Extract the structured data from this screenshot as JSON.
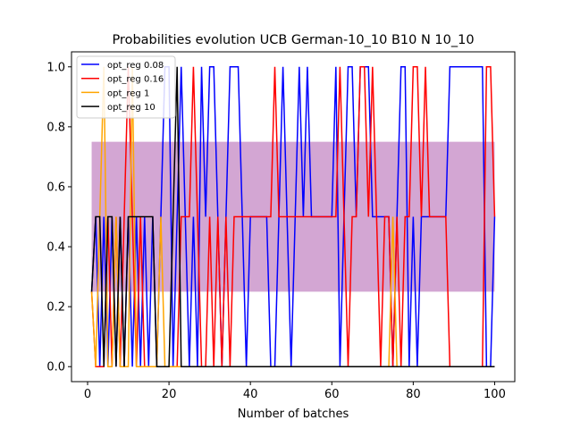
{
  "chart_data": {
    "type": "line",
    "title": "Probabilities evolution UCB German-10_10 B10 N 10_10",
    "xlabel": "Number of batches",
    "ylabel": "",
    "xlim": [
      -3.95,
      104.95
    ],
    "ylim": [
      -0.05,
      1.05
    ],
    "xticks": [
      0,
      20,
      40,
      60,
      80,
      100
    ],
    "yticks": [
      0.0,
      0.2,
      0.4,
      0.6,
      0.8,
      1.0
    ],
    "xtick_labels": [
      "0",
      "20",
      "40",
      "60",
      "80",
      "100"
    ],
    "ytick_labels": [
      "0.0",
      "0.2",
      "0.4",
      "0.6",
      "0.8",
      "1.0"
    ],
    "grid": false,
    "legend_position": "top-left",
    "band": {
      "x": [
        1,
        100
      ],
      "lower": 0.25,
      "upper": 0.75,
      "color": "#800080"
    },
    "series": [
      {
        "name": "opt_reg 0.08",
        "color": "#0000ff",
        "x": [
          1,
          2,
          3,
          4,
          5,
          6,
          7,
          8,
          9,
          10,
          11,
          12,
          13,
          14,
          15,
          16,
          17,
          18,
          19,
          20,
          21,
          22,
          23,
          24,
          25,
          26,
          27,
          28,
          29,
          30,
          31,
          32,
          33,
          34,
          35,
          36,
          37,
          38,
          39,
          40,
          41,
          42,
          43,
          44,
          45,
          46,
          47,
          48,
          49,
          50,
          51,
          52,
          53,
          54,
          55,
          56,
          57,
          58,
          59,
          60,
          61,
          62,
          63,
          64,
          65,
          66,
          67,
          68,
          69,
          70,
          71,
          72,
          73,
          74,
          75,
          76,
          77,
          78,
          79,
          80,
          81,
          82,
          83,
          84,
          85,
          86,
          87,
          88,
          89,
          90,
          91,
          92,
          93,
          94,
          95,
          96,
          97,
          98,
          99,
          100
        ],
        "y": [
          0.25,
          0.5,
          0.0,
          0.5,
          0.0,
          0.5,
          0.0,
          0.5,
          0.0,
          0.5,
          0.0,
          0.5,
          0.0,
          0.5,
          0.0,
          0.5,
          0.0,
          0.5,
          1.0,
          1.0,
          0.0,
          0.5,
          1.0,
          0.5,
          0.0,
          0.5,
          0.0,
          1.0,
          0.5,
          1.0,
          1.0,
          0.5,
          0.0,
          0.5,
          1.0,
          1.0,
          1.0,
          0.5,
          0.0,
          0.5,
          0.5,
          0.5,
          0.5,
          0.5,
          0.0,
          0.0,
          0.5,
          1.0,
          0.5,
          0.0,
          0.5,
          1.0,
          0.5,
          1.0,
          0.5,
          0.5,
          0.5,
          0.5,
          0.5,
          0.5,
          1.0,
          0.0,
          0.5,
          1.0,
          1.0,
          0.5,
          1.0,
          1.0,
          1.0,
          0.5,
          0.5,
          0.5,
          0.5,
          0.5,
          0.0,
          0.5,
          1.0,
          1.0,
          0.0,
          0.5,
          0.0,
          0.5,
          0.5,
          0.5,
          0.5,
          0.5,
          0.5,
          0.5,
          1.0,
          1.0,
          1.0,
          1.0,
          1.0,
          1.0,
          1.0,
          1.0,
          1.0,
          0.0,
          0.0,
          0.5
        ]
      },
      {
        "name": "opt_reg 0.16",
        "color": "#ff0000",
        "x": [
          1,
          2,
          3,
          4,
          5,
          6,
          7,
          8,
          9,
          10,
          11,
          12,
          13,
          14,
          15,
          16,
          17,
          18,
          19,
          20,
          21,
          22,
          23,
          24,
          25,
          26,
          27,
          28,
          29,
          30,
          31,
          32,
          33,
          34,
          35,
          36,
          37,
          38,
          39,
          40,
          41,
          42,
          43,
          44,
          45,
          46,
          47,
          48,
          49,
          50,
          51,
          52,
          53,
          54,
          55,
          56,
          57,
          58,
          59,
          60,
          61,
          62,
          63,
          64,
          65,
          66,
          67,
          68,
          69,
          70,
          71,
          72,
          73,
          74,
          75,
          76,
          77,
          78,
          79,
          80,
          81,
          82,
          83,
          84,
          85,
          86,
          87,
          88,
          89,
          90,
          91,
          92,
          93,
          94,
          95,
          96,
          97,
          98,
          99,
          100
        ],
        "y": [
          0.25,
          0.0,
          0.0,
          0.0,
          0.5,
          0.0,
          0.5,
          0.0,
          0.5,
          1.0,
          0.5,
          0.0,
          0.5,
          0.0,
          0.0,
          0.0,
          0.0,
          0.0,
          0.0,
          0.0,
          0.0,
          0.0,
          0.5,
          0.5,
          0.5,
          1.0,
          0.5,
          0.0,
          0.0,
          0.5,
          0.0,
          0.5,
          0.0,
          0.5,
          0.0,
          0.5,
          0.5,
          0.5,
          0.5,
          0.5,
          0.5,
          0.5,
          0.5,
          0.5,
          0.5,
          1.0,
          0.5,
          0.5,
          0.5,
          0.5,
          0.5,
          0.5,
          0.5,
          0.5,
          0.5,
          0.5,
          0.5,
          0.5,
          0.5,
          0.5,
          0.5,
          1.0,
          0.5,
          0.0,
          0.5,
          0.5,
          1.0,
          1.0,
          0.5,
          1.0,
          0.5,
          0.0,
          0.5,
          0.5,
          0.0,
          0.5,
          0.0,
          0.5,
          0.5,
          1.0,
          1.0,
          0.5,
          1.0,
          0.5,
          0.5,
          0.5,
          0.5,
          0.5,
          0.0,
          0.0,
          0.0,
          0.0,
          0.0,
          0.0,
          0.0,
          0.0,
          0.0,
          1.0,
          1.0,
          0.5
        ]
      },
      {
        "name": "opt_reg 1",
        "color": "#ffa500",
        "x": [
          1,
          2,
          3,
          4,
          5,
          6,
          7,
          8,
          9,
          10,
          11,
          12,
          13,
          14,
          15,
          16,
          17,
          18,
          19,
          20,
          21,
          22,
          23,
          24,
          25,
          26,
          27,
          28,
          29,
          30,
          31,
          32,
          33,
          34,
          35,
          36,
          37,
          38,
          39,
          40,
          41,
          42,
          43,
          44,
          45,
          46,
          47,
          48,
          49,
          50,
          51,
          52,
          53,
          54,
          55,
          56,
          57,
          58,
          59,
          60,
          61,
          62,
          63,
          64,
          65,
          66,
          67,
          68,
          69,
          70,
          71,
          72,
          73,
          74,
          75,
          76,
          77,
          78,
          79,
          80,
          81,
          82,
          83,
          84,
          85,
          86,
          87,
          88,
          89,
          90,
          91,
          92,
          93,
          94,
          95,
          96,
          97,
          98,
          99,
          100
        ],
        "y": [
          0.25,
          0.0,
          0.5,
          1.0,
          0.0,
          0.0,
          0.5,
          0.0,
          0.0,
          0.0,
          1.0,
          0.0,
          0.0,
          0.0,
          0.0,
          0.0,
          0.0,
          0.5,
          0.0,
          0.0,
          0.0,
          0.0,
          0.0,
          0.0,
          0.0,
          0.0,
          0.0,
          0.0,
          0.0,
          0.0,
          0.0,
          0.0,
          0.0,
          0.0,
          0.0,
          0.0,
          0.0,
          0.0,
          0.0,
          0.0,
          0.0,
          0.0,
          0.0,
          0.0,
          0.0,
          0.0,
          0.0,
          0.0,
          0.0,
          0.0,
          0.0,
          0.0,
          0.0,
          0.0,
          0.0,
          0.0,
          0.0,
          0.0,
          0.0,
          0.0,
          0.0,
          0.0,
          0.0,
          0.0,
          0.0,
          0.0,
          0.0,
          0.0,
          0.0,
          0.0,
          0.0,
          0.0,
          0.0,
          0.0,
          0.5,
          0.0,
          0.0,
          0.0,
          0.0,
          0.0,
          0.0,
          0.0,
          0.0,
          0.0,
          0.0,
          0.0,
          0.0,
          0.0,
          0.0,
          0.0,
          0.0,
          0.0,
          0.0,
          0.0,
          0.0,
          0.0,
          0.0,
          0.0,
          0.0,
          0.0
        ]
      },
      {
        "name": "opt_reg 10",
        "color": "#000000",
        "x": [
          1,
          2,
          3,
          4,
          5,
          6,
          7,
          8,
          9,
          10,
          11,
          12,
          13,
          14,
          15,
          16,
          17,
          18,
          19,
          20,
          21,
          22,
          23,
          24,
          25,
          26,
          27,
          28,
          29,
          30,
          31,
          32,
          33,
          34,
          35,
          36,
          37,
          38,
          39,
          40,
          41,
          42,
          43,
          44,
          45,
          46,
          47,
          48,
          49,
          50,
          51,
          52,
          53,
          54,
          55,
          56,
          57,
          58,
          59,
          60,
          61,
          62,
          63,
          64,
          65,
          66,
          67,
          68,
          69,
          70,
          71,
          72,
          73,
          74,
          75,
          76,
          77,
          78,
          79,
          80,
          81,
          82,
          83,
          84,
          85,
          86,
          87,
          88,
          89,
          90,
          91,
          92,
          93,
          94,
          95,
          96,
          97,
          98,
          99,
          100
        ],
        "y": [
          0.25,
          0.5,
          0.5,
          0.0,
          0.5,
          0.5,
          0.0,
          0.5,
          0.0,
          0.5,
          0.5,
          0.5,
          0.5,
          0.5,
          0.5,
          0.5,
          0.0,
          0.0,
          0.0,
          0.0,
          0.5,
          1.0,
          0.0,
          0.0,
          0.0,
          0.0,
          0.0,
          0.0,
          0.0,
          0.0,
          0.0,
          0.0,
          0.0,
          0.0,
          0.0,
          0.0,
          0.0,
          0.0,
          0.0,
          0.0,
          0.0,
          0.0,
          0.0,
          0.0,
          0.0,
          0.0,
          0.0,
          0.0,
          0.0,
          0.0,
          0.0,
          0.0,
          0.0,
          0.0,
          0.0,
          0.0,
          0.0,
          0.0,
          0.0,
          0.0,
          0.0,
          0.0,
          0.0,
          0.0,
          0.0,
          0.0,
          0.0,
          0.0,
          0.0,
          0.0,
          0.0,
          0.0,
          0.0,
          0.0,
          0.0,
          0.0,
          0.0,
          0.0,
          0.0,
          0.0,
          0.0,
          0.0,
          0.0,
          0.0,
          0.0,
          0.0,
          0.0,
          0.0,
          0.0,
          0.0,
          0.0,
          0.0,
          0.0,
          0.0,
          0.0,
          0.0,
          0.0,
          0.0,
          0.0,
          0.0
        ]
      }
    ]
  }
}
